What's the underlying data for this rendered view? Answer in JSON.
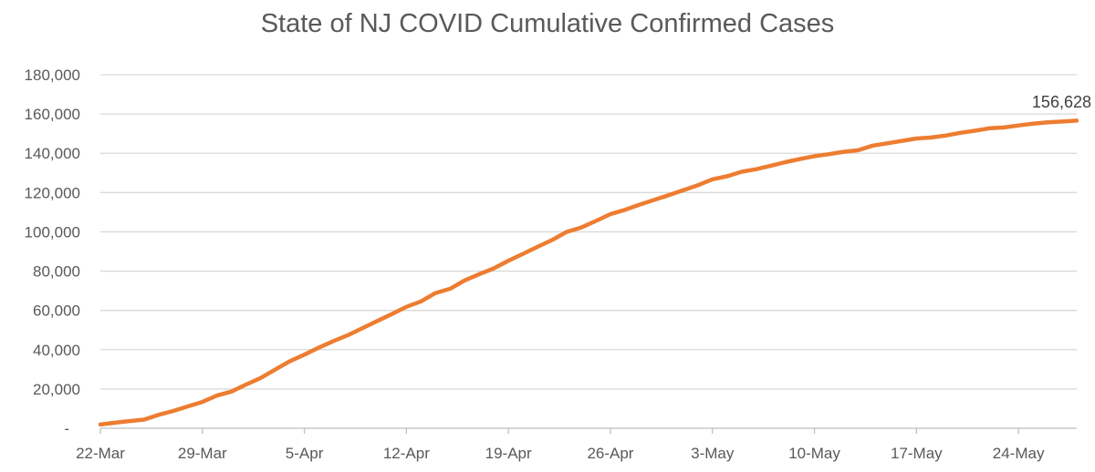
{
  "chart_data": {
    "type": "line",
    "title": "State of NJ COVID Cumulative Confirmed Cases",
    "xlabel": "",
    "ylabel": "",
    "ylim": [
      0,
      180000
    ],
    "grid": "horizontal",
    "legend": "none",
    "last_point_label": "156,628",
    "dates": [
      "22-Mar",
      "23-Mar",
      "24-Mar",
      "25-Mar",
      "26-Mar",
      "27-Mar",
      "28-Mar",
      "29-Mar",
      "30-Mar",
      "31-Mar",
      "1-Apr",
      "2-Apr",
      "3-Apr",
      "4-Apr",
      "5-Apr",
      "6-Apr",
      "7-Apr",
      "8-Apr",
      "9-Apr",
      "10-Apr",
      "11-Apr",
      "12-Apr",
      "13-Apr",
      "14-Apr",
      "15-Apr",
      "16-Apr",
      "17-Apr",
      "18-Apr",
      "19-Apr",
      "20-Apr",
      "21-Apr",
      "22-Apr",
      "23-Apr",
      "24-Apr",
      "25-Apr",
      "26-Apr",
      "27-Apr",
      "28-Apr",
      "29-Apr",
      "30-Apr",
      "1-May",
      "2-May",
      "3-May",
      "4-May",
      "5-May",
      "6-May",
      "7-May",
      "8-May",
      "9-May",
      "10-May",
      "11-May",
      "12-May",
      "13-May",
      "14-May",
      "15-May",
      "16-May",
      "17-May",
      "18-May",
      "19-May",
      "20-May",
      "21-May",
      "22-May",
      "23-May",
      "24-May",
      "25-May",
      "26-May",
      "27-May",
      "28-May"
    ],
    "values": [
      1914,
      2844,
      3675,
      4402,
      6876,
      8825,
      11124,
      13386,
      16636,
      18696,
      22255,
      25590,
      29895,
      34124,
      37505,
      41090,
      44416,
      47437,
      51027,
      54588,
      58151,
      61850,
      64584,
      68824,
      71030,
      75317,
      78467,
      81420,
      85301,
      88806,
      92387,
      95865,
      99989,
      102196,
      105523,
      109038,
      111188,
      113856,
      116264,
      118652,
      121190,
      123717,
      126744,
      128269,
      130593,
      131890,
      133635,
      135454,
      137085,
      138532,
      139534,
      140743,
      141560,
      143905,
      145089,
      146334,
      147537,
      148039,
      149013,
      150399,
      151472,
      152719,
      153140,
      154154,
      155092,
      155764,
      156171,
      156628
    ],
    "x_ticks": [
      {
        "day": 0,
        "label": "22-Mar"
      },
      {
        "day": 7,
        "label": "29-Mar"
      },
      {
        "day": 14,
        "label": "5-Apr"
      },
      {
        "day": 21,
        "label": "12-Apr"
      },
      {
        "day": 28,
        "label": "19-Apr"
      },
      {
        "day": 35,
        "label": "26-Apr"
      },
      {
        "day": 42,
        "label": "3-May"
      },
      {
        "day": 49,
        "label": "10-May"
      },
      {
        "day": 56,
        "label": "17-May"
      },
      {
        "day": 63,
        "label": "24-May"
      }
    ],
    "y_ticks": [
      {
        "value": 180000,
        "label": "180,000"
      },
      {
        "value": 160000,
        "label": "160,000"
      },
      {
        "value": 140000,
        "label": "140,000"
      },
      {
        "value": 120000,
        "label": "120,000"
      },
      {
        "value": 100000,
        "label": "100,000"
      },
      {
        "value": 80000,
        "label": "80,000"
      },
      {
        "value": 60000,
        "label": "60,000"
      },
      {
        "value": 40000,
        "label": "40,000"
      },
      {
        "value": 20000,
        "label": "20,000"
      },
      {
        "value": 0,
        "label": "-"
      }
    ],
    "colors": {
      "line": "#ED7D31",
      "gridline": "#D9D9D9",
      "axis": "#BFBFBF",
      "tick_text": "#595959",
      "title_text": "#595959",
      "data_label_text": "#404040",
      "background": "#FFFFFF"
    }
  }
}
